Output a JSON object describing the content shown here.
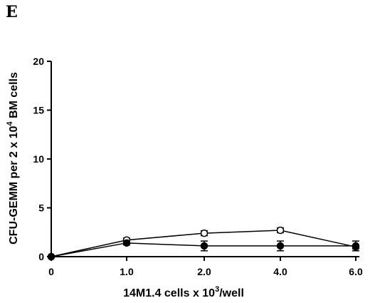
{
  "figure": {
    "panel_letter": "E"
  },
  "chart_data": {
    "type": "line",
    "categories": [
      "0",
      "1.0",
      "2.0",
      "4.0",
      "6.0"
    ],
    "xlabel_parts": [
      "14M1.4 cells x 10",
      "3",
      "/well"
    ],
    "ylabel_parts": [
      "CFU-GEMM per 2 x 10",
      "4",
      " BM cells"
    ],
    "ylim": [
      0,
      20
    ],
    "yticks": [
      "0",
      "5",
      "10",
      "15",
      "20"
    ],
    "series": [
      {
        "marker": "open-circle",
        "color": "#000000",
        "values": [
          0,
          1.7,
          2.4,
          2.7,
          1.0
        ],
        "errors": [
          0,
          0.2,
          0.25,
          0.25,
          0.2
        ]
      },
      {
        "marker": "filled-circle",
        "color": "#000000",
        "values": [
          0,
          1.4,
          1.1,
          1.1,
          1.1
        ],
        "errors": [
          0,
          0.2,
          0.5,
          0.5,
          0.5
        ]
      }
    ]
  }
}
